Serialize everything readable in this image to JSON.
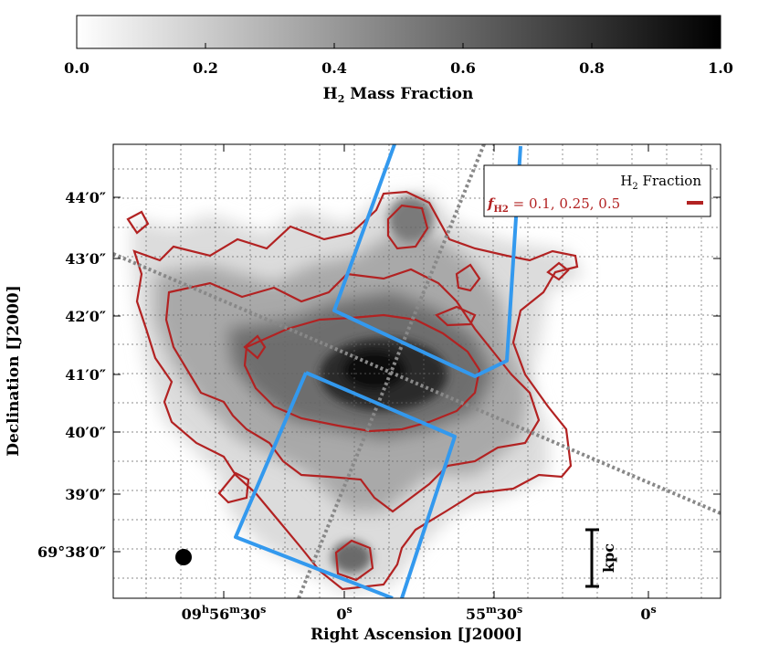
{
  "chart_data": {
    "type": "heatmap",
    "colorbar": {
      "label": "H",
      "label_sub": "2",
      "label_rest": " Mass Fraction",
      "ticks": [
        "0.0",
        "0.2",
        "0.4",
        "0.6",
        "0.8",
        "1.0"
      ],
      "range": [
        0.0,
        1.0
      ]
    },
    "xlabel": "Right Ascension [J2000]",
    "ylabel": "Declination [J2000]",
    "x_ticks": [
      {
        "h": "09",
        "m": "56",
        "s": "30"
      },
      {
        "h": "",
        "m": "",
        "s": "0"
      },
      {
        "h": "",
        "m": "55",
        "s": "30"
      },
      {
        "h": "",
        "m": "",
        "s": "0"
      }
    ],
    "y_ticks": [
      {
        "deg": "",
        "min": "44",
        "sec": "0"
      },
      {
        "deg": "",
        "min": "43",
        "sec": "0"
      },
      {
        "deg": "",
        "min": "42",
        "sec": "0"
      },
      {
        "deg": "",
        "min": "41",
        "sec": "0"
      },
      {
        "deg": "",
        "min": "40",
        "sec": "0"
      },
      {
        "deg": "",
        "min": "39",
        "sec": "0"
      },
      {
        "deg": "69",
        "min": "38",
        "sec": "0"
      }
    ],
    "legend": {
      "title_main": "H",
      "title_sub": "2",
      "title_rest": " Fraction",
      "entry_symbol": "f",
      "entry_sub": "H2",
      "entry_text": " = 0.1, 0.25, 0.5",
      "placement": "top-right"
    },
    "contour_levels": [
      0.1,
      0.25,
      0.5
    ],
    "scale_bar_label": "kpc",
    "grid": true,
    "colors": {
      "contour": "#b22222",
      "footprint": "#3399ee",
      "axis_line": "#888888"
    }
  }
}
